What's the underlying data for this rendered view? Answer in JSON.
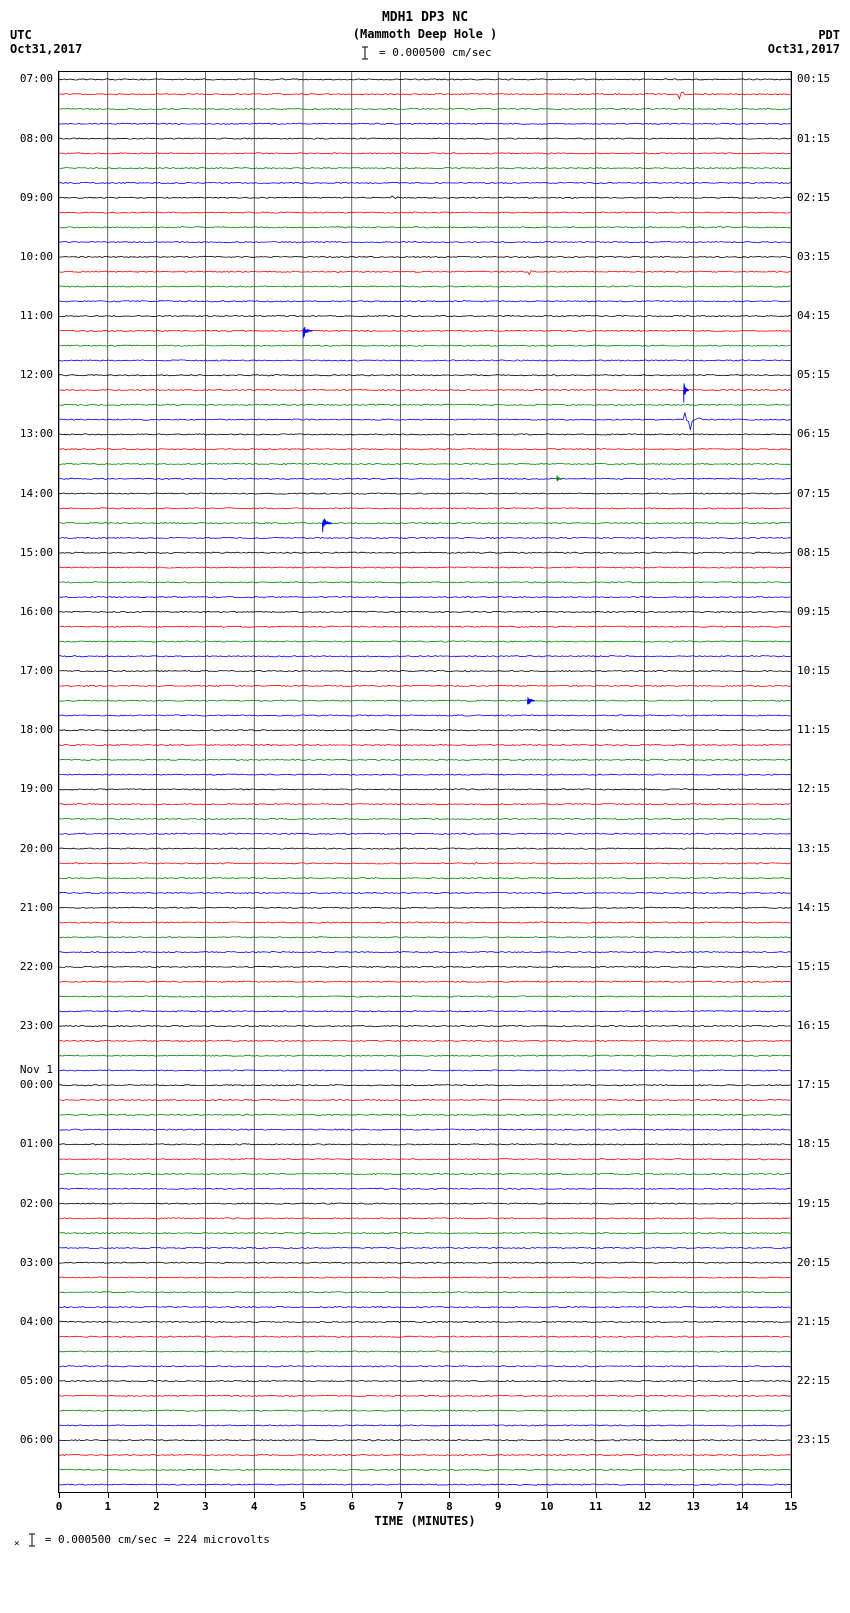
{
  "header": {
    "title": "MDH1 DP3 NC",
    "subtitle": "(Mammoth Deep Hole )",
    "scale_label": "= 0.000500 cm/sec",
    "tz_left": "UTC",
    "date_left": "Oct31,2017",
    "tz_right": "PDT",
    "date_right": "Oct31,2017"
  },
  "chart": {
    "type": "seismogram",
    "background_color": "#ffffff",
    "grid_color": "#000000",
    "grid_minor_color": "#888888",
    "num_traces": 96,
    "x_ticks": [
      0,
      1,
      2,
      3,
      4,
      5,
      6,
      7,
      8,
      9,
      10,
      11,
      12,
      13,
      14,
      15
    ],
    "x_axis_title": "TIME (MINUTES)",
    "trace_colors": [
      "#000000",
      "#ff0000",
      "#008800",
      "#0000ff"
    ],
    "left_time_labels": [
      {
        "row": 0,
        "text": "07:00"
      },
      {
        "row": 4,
        "text": "08:00"
      },
      {
        "row": 8,
        "text": "09:00"
      },
      {
        "row": 12,
        "text": "10:00"
      },
      {
        "row": 16,
        "text": "11:00"
      },
      {
        "row": 20,
        "text": "12:00"
      },
      {
        "row": 24,
        "text": "13:00"
      },
      {
        "row": 28,
        "text": "14:00"
      },
      {
        "row": 32,
        "text": "15:00"
      },
      {
        "row": 36,
        "text": "16:00"
      },
      {
        "row": 40,
        "text": "17:00"
      },
      {
        "row": 44,
        "text": "18:00"
      },
      {
        "row": 48,
        "text": "19:00"
      },
      {
        "row": 52,
        "text": "20:00"
      },
      {
        "row": 56,
        "text": "21:00"
      },
      {
        "row": 60,
        "text": "22:00"
      },
      {
        "row": 64,
        "text": "23:00"
      },
      {
        "row": 67,
        "text": "Nov 1"
      },
      {
        "row": 68,
        "text": "00:00"
      },
      {
        "row": 72,
        "text": "01:00"
      },
      {
        "row": 76,
        "text": "02:00"
      },
      {
        "row": 80,
        "text": "03:00"
      },
      {
        "row": 84,
        "text": "04:00"
      },
      {
        "row": 88,
        "text": "05:00"
      },
      {
        "row": 92,
        "text": "06:00"
      }
    ],
    "right_time_labels": [
      {
        "row": 0,
        "text": "00:15"
      },
      {
        "row": 4,
        "text": "01:15"
      },
      {
        "row": 8,
        "text": "02:15"
      },
      {
        "row": 12,
        "text": "03:15"
      },
      {
        "row": 16,
        "text": "04:15"
      },
      {
        "row": 20,
        "text": "05:15"
      },
      {
        "row": 24,
        "text": "06:15"
      },
      {
        "row": 28,
        "text": "07:15"
      },
      {
        "row": 32,
        "text": "08:15"
      },
      {
        "row": 36,
        "text": "09:15"
      },
      {
        "row": 40,
        "text": "10:15"
      },
      {
        "row": 44,
        "text": "11:15"
      },
      {
        "row": 48,
        "text": "12:15"
      },
      {
        "row": 52,
        "text": "13:15"
      },
      {
        "row": 56,
        "text": "14:15"
      },
      {
        "row": 60,
        "text": "15:15"
      },
      {
        "row": 64,
        "text": "16:15"
      },
      {
        "row": 68,
        "text": "17:15"
      },
      {
        "row": 72,
        "text": "18:15"
      },
      {
        "row": 76,
        "text": "19:15"
      },
      {
        "row": 80,
        "text": "20:15"
      },
      {
        "row": 84,
        "text": "21:15"
      },
      {
        "row": 88,
        "text": "22:15"
      },
      {
        "row": 92,
        "text": "23:15"
      }
    ],
    "events": [
      {
        "row": 1,
        "x_min": 12.7,
        "amplitude": 8,
        "width": 0.3,
        "color": "#ff0000"
      },
      {
        "row": 8,
        "x_min": 6.8,
        "amplitude": 10,
        "width": 0.15,
        "color": "#000000"
      },
      {
        "row": 13,
        "x_min": 9.6,
        "amplitude": 12,
        "width": 0.15,
        "color": "#ff0000"
      },
      {
        "row": 17,
        "x_min": 5.0,
        "amplitude": 8,
        "width": 0.2,
        "color": "#0000ff"
      },
      {
        "row": 21,
        "x_min": 12.8,
        "amplitude": 20,
        "width": 0.1,
        "color": "#0000ff"
      },
      {
        "row": 23,
        "x_min": 12.8,
        "amplitude": 35,
        "width": 0.4,
        "color": "#0000ff"
      },
      {
        "row": 27,
        "x_min": 10.2,
        "amplitude": 5,
        "width": 0.1,
        "color": "#008800"
      },
      {
        "row": 30,
        "x_min": 5.4,
        "amplitude": 10,
        "width": 0.2,
        "color": "#0000ff"
      },
      {
        "row": 42,
        "x_min": 9.6,
        "amplitude": 8,
        "width": 0.15,
        "color": "#0000ff"
      },
      {
        "row": 53,
        "x_min": 8.5,
        "amplitude": 4,
        "width": 0.1,
        "color": "#ff0000"
      }
    ]
  },
  "footer": {
    "scale_text": "= 0.000500 cm/sec =    224 microvolts"
  }
}
